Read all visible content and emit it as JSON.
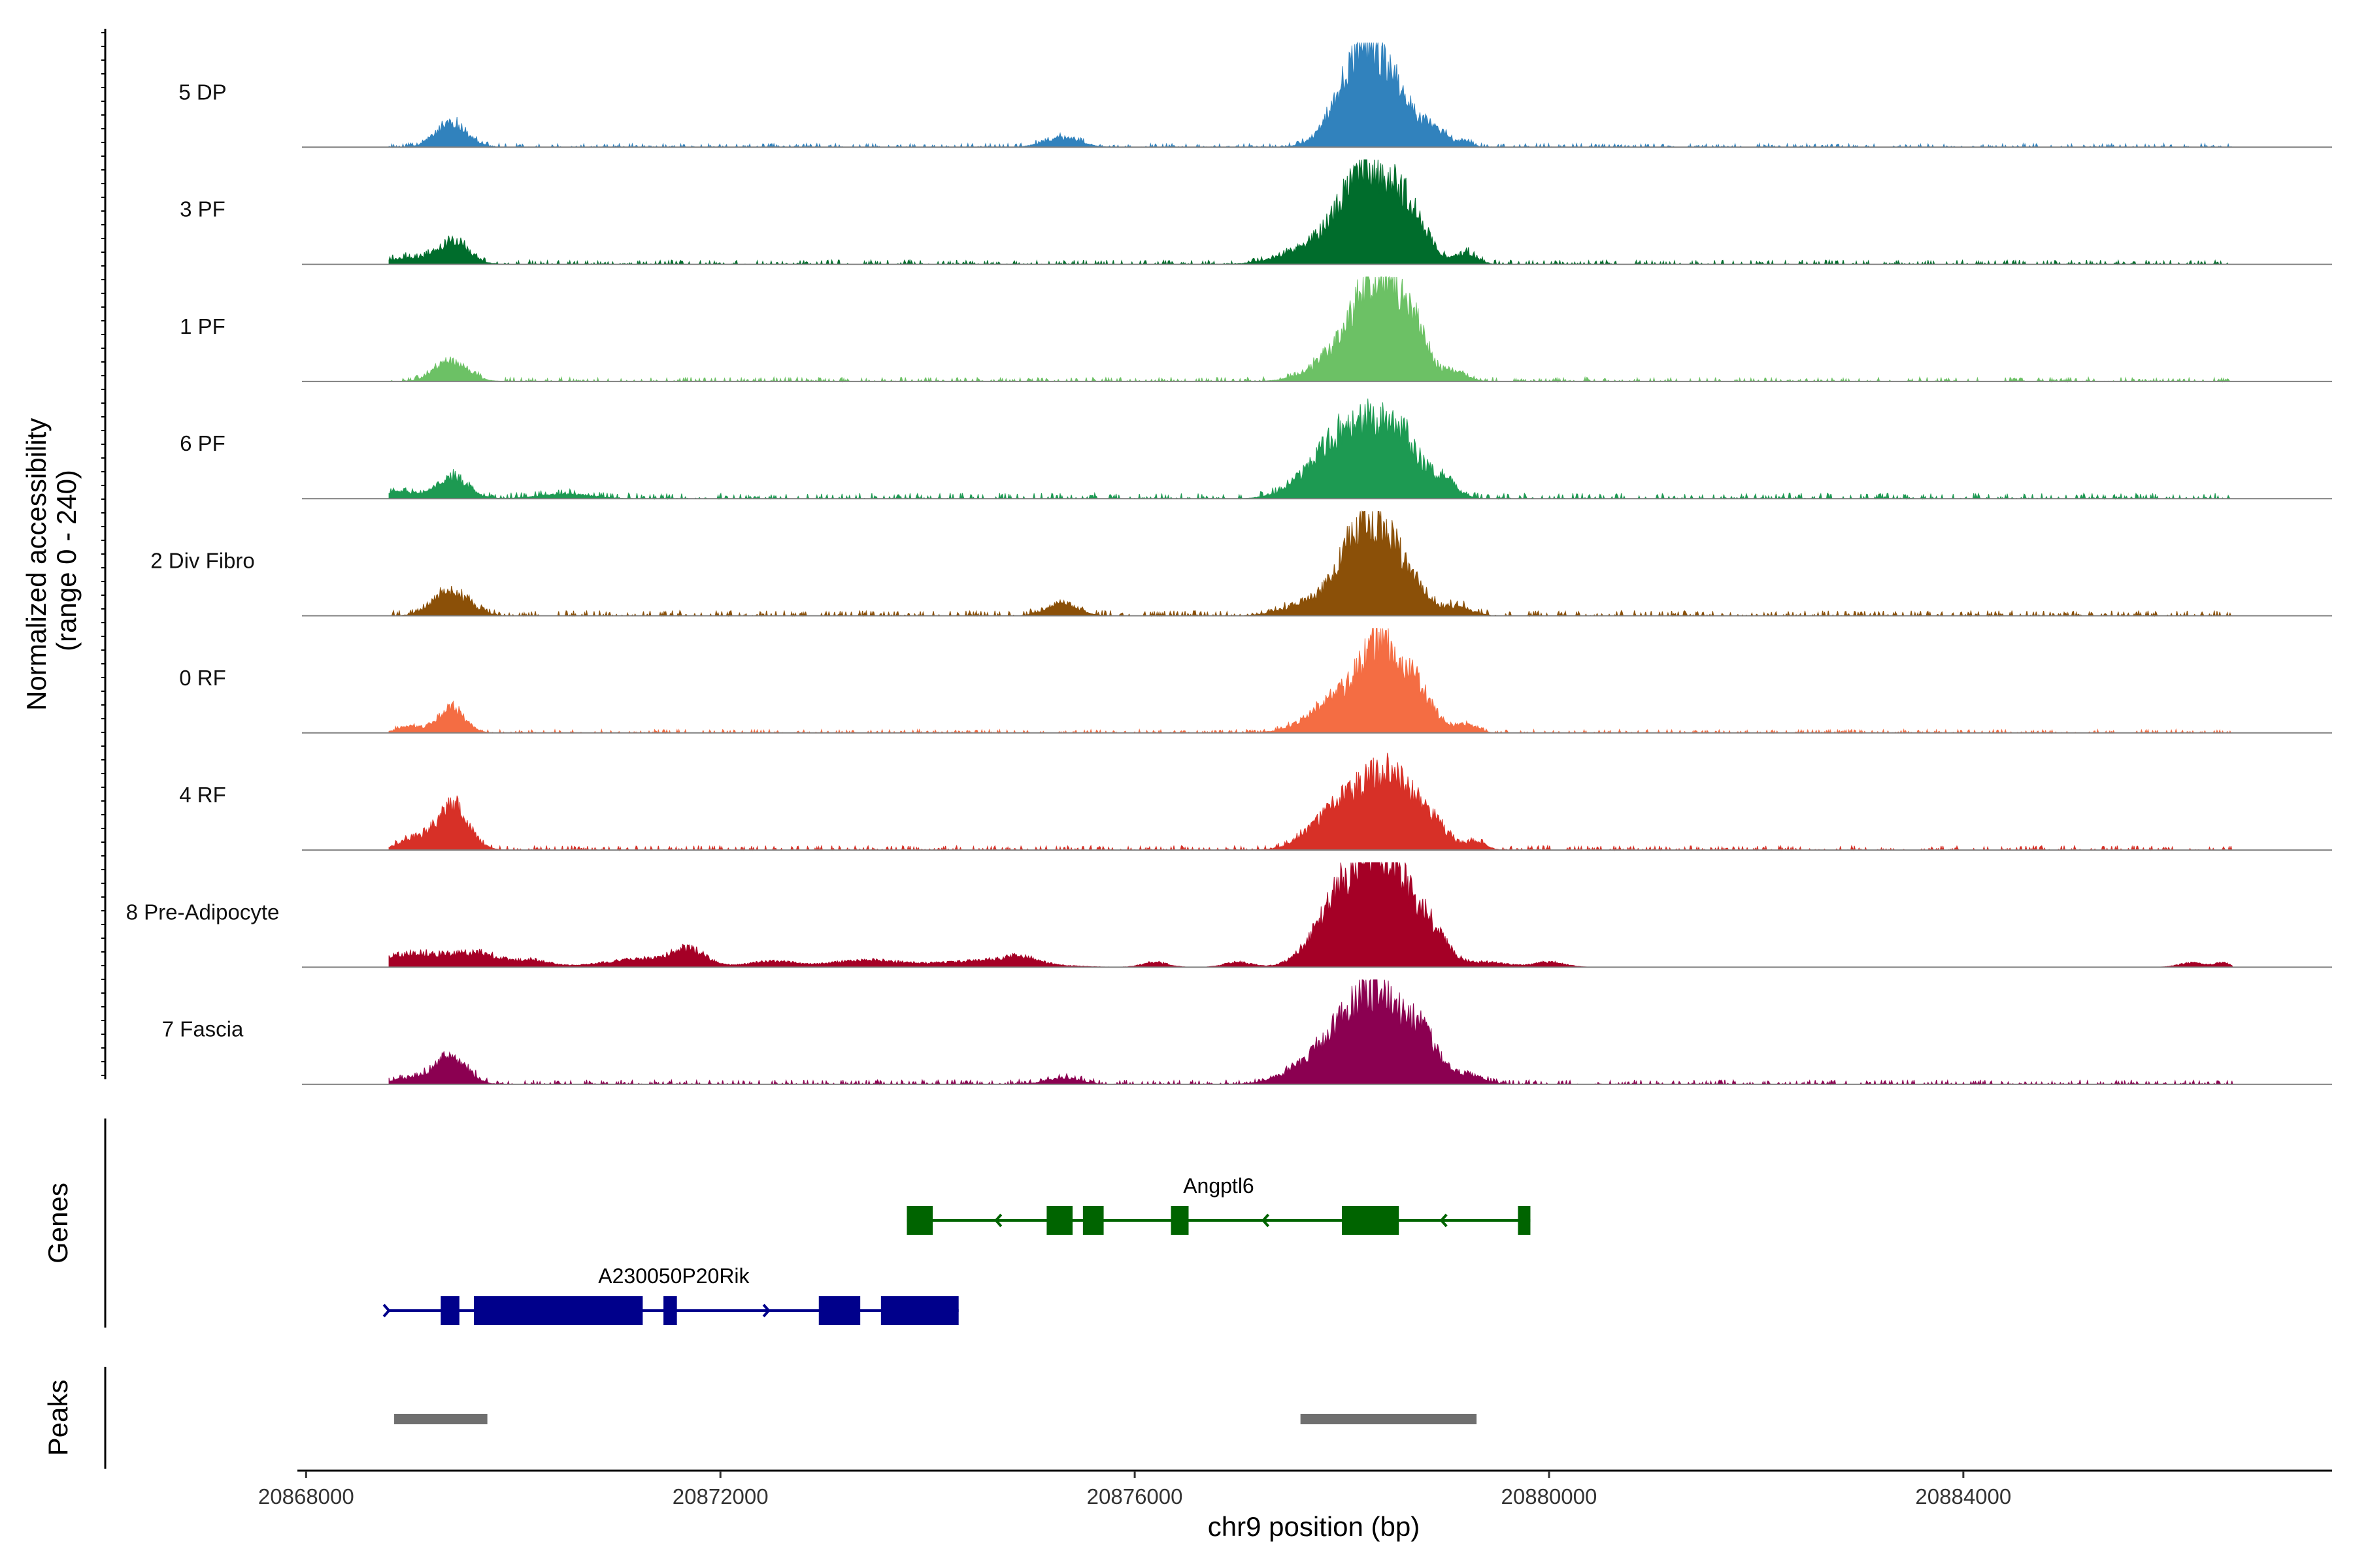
{
  "chart_data": {
    "type": "area",
    "title": "",
    "ylabel": "Normalized accessibility\n(range 0 - 240)",
    "ylabel_lines": [
      "Normalized accessibility",
      "(range 0 - 240)"
    ],
    "xlabel": "chr9 position (bp)",
    "chromosome": "chr9",
    "xlim": [
      20867960,
      20887560
    ],
    "ylim": [
      0,
      240
    ],
    "x_ticks": [
      20868000,
      20872000,
      20876000,
      20880000,
      20884000
    ],
    "x_tick_labels": [
      "20868000",
      "20872000",
      "20876000",
      "20880000",
      "20884000"
    ],
    "coverage_range": [
      20868800,
      20886600
    ],
    "series": [
      {
        "name": "5 DP",
        "color": "#3182BD",
        "scale": 1.0,
        "bg": 0.035,
        "peaks": [
          [
            20869400,
            150,
            55
          ],
          [
            20875300,
            170,
            22
          ],
          [
            20878200,
            230,
            230
          ],
          [
            20878550,
            160,
            80
          ],
          [
            20878900,
            120,
            40
          ],
          [
            20879200,
            60,
            14
          ]
        ]
      },
      {
        "name": "3 PF",
        "color": "#006D2C",
        "scale": 0.92,
        "bg": 0.045,
        "peaks": [
          [
            20869420,
            150,
            58
          ],
          [
            20868950,
            200,
            16
          ],
          [
            20877900,
            330,
            70
          ],
          [
            20878250,
            210,
            210
          ],
          [
            20878650,
            170,
            130
          ],
          [
            20879200,
            100,
            28
          ]
        ]
      },
      {
        "name": "1 PF",
        "color": "#6CC165",
        "scale": 0.9,
        "bg": 0.045,
        "peaks": [
          [
            20869400,
            160,
            50
          ],
          [
            20878000,
            260,
            70
          ],
          [
            20878350,
            210,
            245
          ],
          [
            20878680,
            150,
            120
          ],
          [
            20879100,
            110,
            26
          ]
        ]
      },
      {
        "name": "6 PF",
        "color": "#1D9A52",
        "scale": 0.88,
        "bg": 0.06,
        "peaks": [
          [
            20869400,
            160,
            55
          ],
          [
            20868900,
            150,
            18
          ],
          [
            20870500,
            250,
            12
          ],
          [
            20877700,
            230,
            40
          ],
          [
            20878100,
            270,
            170
          ],
          [
            20878550,
            220,
            150
          ],
          [
            20879000,
            120,
            35
          ]
        ]
      },
      {
        "name": "2 Div Fibro",
        "color": "#8B5008",
        "scale": 1.0,
        "bg": 0.05,
        "peaks": [
          [
            20869400,
            170,
            58
          ],
          [
            20875300,
            150,
            30
          ],
          [
            20877700,
            240,
            30
          ],
          [
            20878250,
            230,
            230
          ],
          [
            20878650,
            150,
            70
          ],
          [
            20879100,
            140,
            22
          ]
        ]
      },
      {
        "name": "0 RF",
        "color": "#F46D43",
        "scale": 0.8,
        "bg": 0.04,
        "peaks": [
          [
            20869400,
            130,
            70
          ],
          [
            20869000,
            120,
            18
          ],
          [
            20878000,
            280,
            100
          ],
          [
            20878400,
            200,
            230
          ],
          [
            20878750,
            150,
            90
          ],
          [
            20879200,
            100,
            26
          ]
        ]
      },
      {
        "name": "4 RF",
        "color": "#D73027",
        "scale": 0.85,
        "bg": 0.05,
        "peaks": [
          [
            20869420,
            150,
            120
          ],
          [
            20869050,
            150,
            30
          ],
          [
            20878000,
            260,
            120
          ],
          [
            20878450,
            220,
            190
          ],
          [
            20878850,
            170,
            70
          ],
          [
            20879300,
            90,
            22
          ]
        ]
      },
      {
        "name": "8 Pre-Adipocyte",
        "color": "#A50026",
        "scale": 1.0,
        "bg": 0.0,
        "peaks": [
          [
            20869300,
            450,
            22
          ],
          [
            20868950,
            300,
            16
          ],
          [
            20869700,
            180,
            18
          ],
          [
            20870200,
            150,
            14
          ],
          [
            20871300,
            400,
            20
          ],
          [
            20871700,
            150,
            32
          ],
          [
            20872500,
            200,
            14
          ],
          [
            20873400,
            350,
            16
          ],
          [
            20874600,
            450,
            16
          ],
          [
            20874900,
            150,
            14
          ],
          [
            20876200,
            120,
            12
          ],
          [
            20877000,
            130,
            12
          ],
          [
            20878000,
            250,
            150
          ],
          [
            20878300,
            200,
            160
          ],
          [
            20878600,
            200,
            140
          ],
          [
            20878900,
            150,
            50
          ],
          [
            20879400,
            200,
            12
          ],
          [
            20880000,
            150,
            12
          ],
          [
            20886200,
            120,
            10
          ],
          [
            20886500,
            80,
            10
          ]
        ]
      },
      {
        "name": "7 Fascia",
        "color": "#8B0051",
        "scale": 0.95,
        "bg": 0.045,
        "peaks": [
          [
            20869400,
            150,
            70
          ],
          [
            20869000,
            150,
            16
          ],
          [
            20877700,
            250,
            45
          ],
          [
            20878100,
            220,
            150
          ],
          [
            20878450,
            200,
            170
          ],
          [
            20878800,
            140,
            100
          ],
          [
            20879200,
            150,
            26
          ],
          [
            20875300,
            160,
            16
          ]
        ]
      }
    ],
    "genes": [
      {
        "name": "Angptl6",
        "strand": "-",
        "color": "#006400",
        "start": 20873800,
        "end": 20879820,
        "exons": [
          [
            20873800,
            20874050
          ],
          [
            20875150,
            20875400
          ],
          [
            20875500,
            20875700
          ],
          [
            20876350,
            20876520
          ],
          [
            20878000,
            20878550
          ],
          [
            20879700,
            20879820
          ]
        ]
      },
      {
        "name": "A230050P20Rik",
        "strand": "+",
        "color": "#00008B",
        "start": 20868800,
        "end": 20874300,
        "exons": [
          [
            20869300,
            20869480
          ],
          [
            20869620,
            20871250
          ],
          [
            20871450,
            20871580
          ],
          [
            20872950,
            20873350
          ],
          [
            20873550,
            20874300
          ]
        ]
      }
    ],
    "peaks": [
      [
        20868850,
        20869750
      ],
      [
        20877600,
        20879300
      ]
    ],
    "panel_labels": [
      "Genes",
      "Peaks"
    ],
    "grid": false,
    "legend": "none"
  }
}
